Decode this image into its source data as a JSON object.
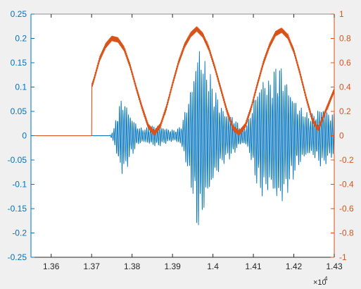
{
  "chart_data": {
    "type": "line",
    "title": "",
    "xlabel": "",
    "ylabel": "",
    "x_exponent_label": "×10",
    "x_exponent_power": "4",
    "xlim": [
      1.355,
      1.43
    ],
    "xticks": [
      1.36,
      1.37,
      1.38,
      1.39,
      1.4,
      1.41,
      1.42,
      1.43
    ],
    "xtick_labels": [
      "1.36",
      "1.37",
      "1.38",
      "1.39",
      "1.4",
      "1.41",
      "1.42",
      "1.43"
    ],
    "y_left": {
      "lim": [
        -0.25,
        0.25
      ],
      "ticks": [
        -0.25,
        -0.2,
        -0.15,
        -0.1,
        -0.05,
        0,
        0.05,
        0.1,
        0.15,
        0.2,
        0.25
      ],
      "tick_labels": [
        "-0.25",
        "-0.2",
        "-0.15",
        "-0.1",
        "-0.05",
        "0",
        "0.05",
        "0.1",
        "0.15",
        "0.2",
        "0.25"
      ],
      "color": "#0072bd"
    },
    "y_right": {
      "lim": [
        -1,
        1
      ],
      "ticks": [
        -1,
        -0.8,
        -0.6,
        -0.4,
        -0.2,
        0,
        0.2,
        0.4,
        0.6,
        0.8,
        1
      ],
      "tick_labels": [
        "-1",
        "-0.8",
        "-0.6",
        "-0.4",
        "-0.2",
        "0",
        "0.2",
        "0.4",
        "0.6",
        "0.8",
        "1"
      ],
      "color": "#d95319"
    },
    "grid": false,
    "legend": "none",
    "series": [
      {
        "axis": "left",
        "color": "#0072bd",
        "envelope": {
          "x": [
            1.355,
            1.3745,
            1.3755,
            1.3765,
            1.3775,
            1.3785,
            1.3795,
            1.3805,
            1.3815,
            1.383,
            1.3845,
            1.386,
            1.3875,
            1.389,
            1.3905,
            1.392,
            1.393,
            1.394,
            1.395,
            1.396,
            1.397,
            1.398,
            1.399,
            1.4,
            1.401,
            1.402,
            1.403,
            1.404,
            1.405,
            1.406,
            1.407,
            1.408,
            1.409,
            1.41,
            1.411,
            1.412,
            1.413,
            1.414,
            1.415,
            1.416,
            1.417,
            1.418,
            1.419,
            1.42,
            1.421,
            1.422,
            1.423,
            1.424,
            1.425,
            1.426,
            1.427,
            1.428,
            1.429,
            1.43
          ],
          "amplitude": [
            0.0,
            0.0,
            0.015,
            0.06,
            0.085,
            0.075,
            0.05,
            0.035,
            0.02,
            0.015,
            0.02,
            0.025,
            0.02,
            0.015,
            0.012,
            0.02,
            0.05,
            0.09,
            0.13,
            0.2,
            0.2,
            0.16,
            0.14,
            0.11,
            0.09,
            0.07,
            0.055,
            0.05,
            0.045,
            0.03,
            0.02,
            0.02,
            0.04,
            0.08,
            0.11,
            0.13,
            0.13,
            0.12,
            0.14,
            0.16,
            0.15,
            0.13,
            0.11,
            0.09,
            0.07,
            0.06,
            0.05,
            0.045,
            0.05,
            0.06,
            0.07,
            0.06,
            0.05,
            0.05
          ]
        },
        "period": 0.00045
      },
      {
        "axis": "right",
        "color": "#d95319",
        "x": [
          1.355,
          1.37,
          1.37,
          1.3705,
          1.372,
          1.3735,
          1.375,
          1.3765,
          1.378,
          1.3795,
          1.381,
          1.3825,
          1.384,
          1.3855,
          1.387,
          1.3885,
          1.39,
          1.3915,
          1.393,
          1.3945,
          1.396,
          1.3975,
          1.399,
          1.4005,
          1.402,
          1.4035,
          1.405,
          1.4065,
          1.408,
          1.4095,
          1.411,
          1.4125,
          1.414,
          1.4155,
          1.417,
          1.4185,
          1.42,
          1.4215,
          1.423,
          1.4245,
          1.426,
          1.4275,
          1.43
        ],
        "y": [
          0.0,
          0.0,
          0.4,
          0.45,
          0.63,
          0.74,
          0.8,
          0.79,
          0.72,
          0.58,
          0.4,
          0.23,
          0.08,
          0.02,
          0.08,
          0.23,
          0.42,
          0.6,
          0.74,
          0.83,
          0.88,
          0.83,
          0.72,
          0.56,
          0.38,
          0.2,
          0.06,
          0.02,
          0.08,
          0.23,
          0.42,
          0.6,
          0.74,
          0.84,
          0.87,
          0.82,
          0.7,
          0.52,
          0.32,
          0.14,
          0.05,
          0.17,
          0.37
        ]
      }
    ]
  }
}
